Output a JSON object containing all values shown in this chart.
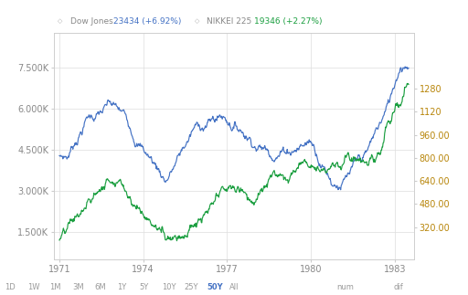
{
  "dow_color": "#4472c4",
  "nikkei_color": "#1a9e3f",
  "background_color": "#ffffff",
  "grid_color": "#dddddd",
  "xlim": [
    1970.8,
    1983.7
  ],
  "left_ylim": [
    500,
    8800
  ],
  "right_ylim": [
    95,
    1670
  ],
  "left_ticks": [
    1500,
    3000,
    4500,
    6000,
    7500
  ],
  "left_tick_labels": [
    "1.500K",
    "3.000K",
    "4.500K",
    "6.000K",
    "7.500K"
  ],
  "right_ticks": [
    320,
    480,
    640,
    800,
    960,
    1120,
    1280
  ],
  "right_tick_labels": [
    "320.00",
    "480.00",
    "640.00",
    "800.00",
    "960.00",
    "1120",
    "1280"
  ],
  "xticks": [
    1971,
    1974,
    1977,
    1980,
    1983
  ],
  "footer_labels": [
    "1D",
    "1W",
    "1M",
    "3M",
    "6M",
    "1Y",
    "5Y",
    "10Y",
    "25Y",
    "50Y",
    "All"
  ],
  "footer_highlight": "50Y",
  "footer_color": "#999999",
  "footer_highlight_color": "#4472c4",
  "right_tick_color": "#b8860b",
  "left_tick_color": "#888888",
  "xtick_color": "#888888"
}
